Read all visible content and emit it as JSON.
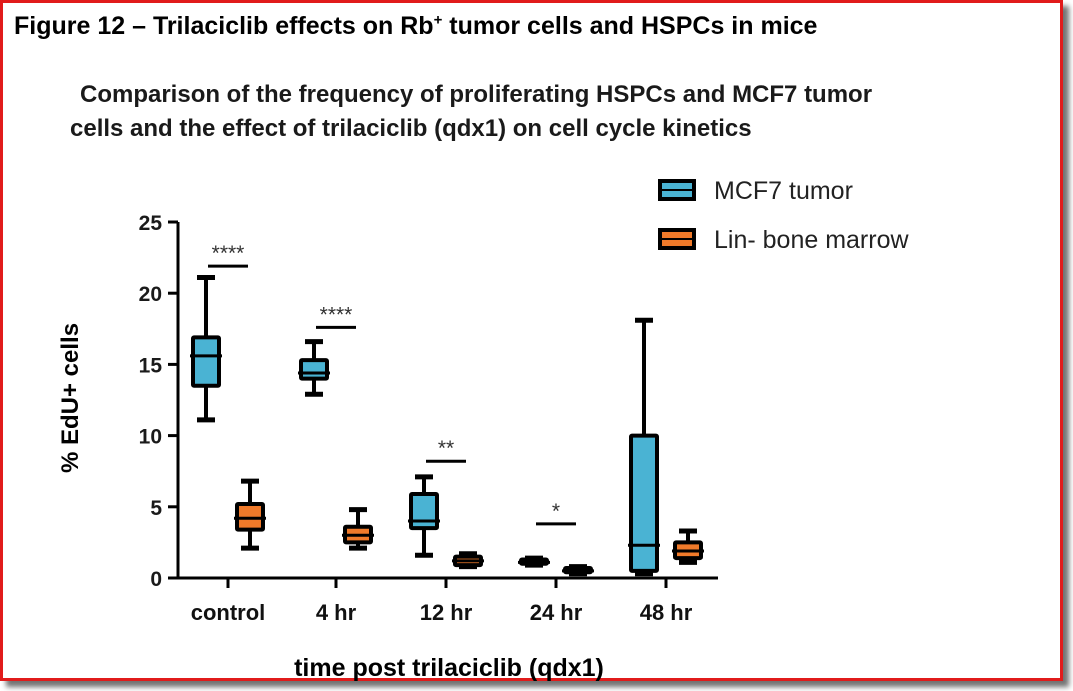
{
  "figure": {
    "title_main": "Figure 12 – Trilaciclib effects on Rb",
    "title_sup": "+",
    "title_end": " tumor cells and HSPCs in mice"
  },
  "chart_data": {
    "type": "box",
    "title_line1": "Comparison of the frequency of proliferating HSPCs and MCF7 tumor",
    "title_line2": "cells and the effect of trilaciclib (qdx1) on cell cycle kinetics",
    "xlabel": "time post trilaciclib (qdx1)",
    "ylabel": "% EdU+ cells",
    "ylim": [
      0,
      25
    ],
    "yticks": [
      0,
      5,
      10,
      15,
      20,
      25
    ],
    "categories": [
      "control",
      "4 hr",
      "12 hr",
      "24 hr",
      "48 hr"
    ],
    "series": [
      {
        "name": "MCF7 tumor",
        "color": "#4ab3d3",
        "boxes": [
          {
            "min": 11.1,
            "q1": 13.5,
            "median": 15.6,
            "q3": 16.9,
            "max": 21.1
          },
          {
            "min": 12.9,
            "q1": 14.0,
            "median": 14.4,
            "q3": 15.3,
            "max": 16.6
          },
          {
            "min": 1.6,
            "q1": 3.5,
            "median": 4.0,
            "q3": 5.9,
            "max": 7.1
          },
          {
            "min": 0.9,
            "q1": 1.0,
            "median": 1.1,
            "q3": 1.3,
            "max": 1.4
          },
          {
            "min": 0.3,
            "q1": 0.5,
            "median": 2.3,
            "q3": 10.0,
            "max": 18.1
          }
        ]
      },
      {
        "name": "Lin- bone marrow",
        "color": "#f07a2a",
        "boxes": [
          {
            "min": 2.1,
            "q1": 3.4,
            "median": 4.2,
            "q3": 5.2,
            "max": 6.8
          },
          {
            "min": 2.1,
            "q1": 2.5,
            "median": 3.0,
            "q3": 3.6,
            "max": 4.8
          },
          {
            "min": 0.8,
            "q1": 0.9,
            "median": 1.2,
            "q3": 1.5,
            "max": 1.7
          },
          {
            "min": 0.3,
            "q1": 0.4,
            "median": 0.5,
            "q3": 0.7,
            "max": 0.8
          },
          {
            "min": 1.1,
            "q1": 1.4,
            "median": 1.9,
            "q3": 2.5,
            "max": 3.3
          }
        ]
      }
    ],
    "significance": [
      {
        "category": "control",
        "label": "****",
        "y": 21.9
      },
      {
        "category": "4 hr",
        "label": "****",
        "y": 17.6
      },
      {
        "category": "12 hr",
        "label": "**",
        "y": 8.2
      },
      {
        "category": "24 hr",
        "label": "*",
        "y": 3.8
      }
    ],
    "legend_position": "top-right"
  }
}
